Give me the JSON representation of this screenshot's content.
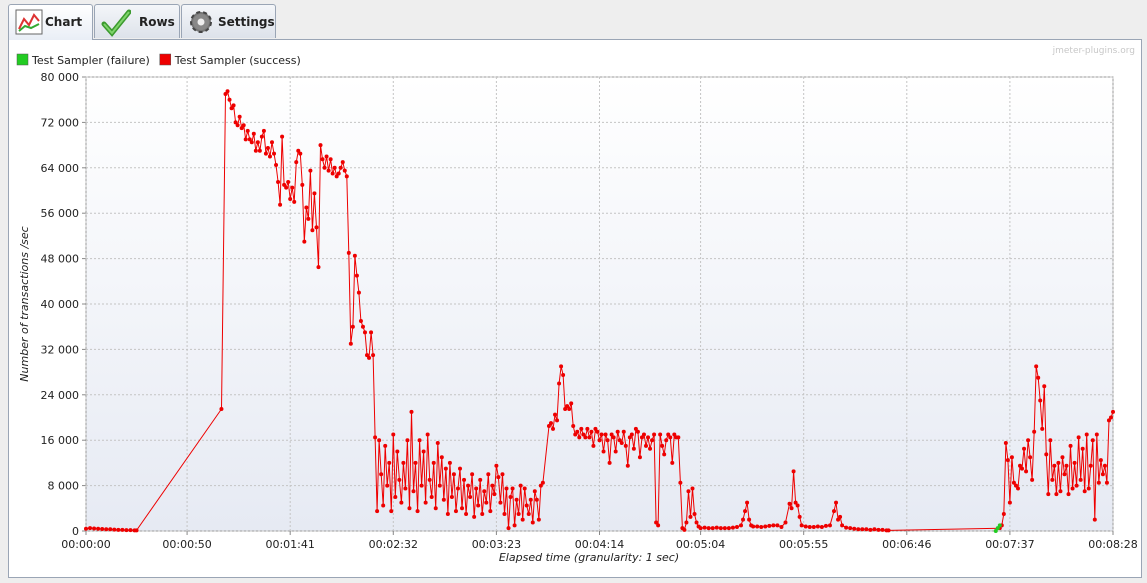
{
  "tabs": [
    "Chart",
    "Rows",
    "Settings"
  ],
  "watermark": "jmeter-plugins.org",
  "chart_data": {
    "type": "line",
    "x_label": "Elapsed time (granularity: 1 sec)",
    "y_label": "Number of transactions /sec",
    "xlim": [
      0,
      508
    ],
    "ylim": [
      0,
      80000
    ],
    "xticks": [
      {
        "value": 0,
        "label": "00:00:00"
      },
      {
        "value": 50,
        "label": "00:00:50"
      },
      {
        "value": 101,
        "label": "00:01:41"
      },
      {
        "value": 152,
        "label": "00:02:32"
      },
      {
        "value": 203,
        "label": "00:03:23"
      },
      {
        "value": 254,
        "label": "00:04:14"
      },
      {
        "value": 304,
        "label": "00:05:04"
      },
      {
        "value": 355,
        "label": "00:05:55"
      },
      {
        "value": 406,
        "label": "00:06:46"
      },
      {
        "value": 457,
        "label": "00:07:37"
      },
      {
        "value": 508,
        "label": "00:08:28"
      }
    ],
    "yticks": [
      0,
      {
        "value": 8000,
        "label": "8 000"
      },
      {
        "value": 16000,
        "label": "16 000"
      },
      {
        "value": 24000,
        "label": "24 000"
      },
      {
        "value": 32000,
        "label": "32 000"
      },
      {
        "value": 40000,
        "label": "40 000"
      },
      {
        "value": 48000,
        "label": "48 000"
      },
      {
        "value": 56000,
        "label": "56 000"
      },
      {
        "value": 64000,
        "label": "64 000"
      },
      {
        "value": 72000,
        "label": "72 000"
      },
      {
        "value": 80000,
        "label": "80 000"
      }
    ],
    "grid": true,
    "legend": "top-left",
    "series": [
      {
        "name": "Test Sampler (failure)",
        "color": "#22cc22",
        "x": [
          450,
          451,
          452
        ],
        "values": [
          0,
          500,
          1000
        ]
      },
      {
        "name": "Test Sampler (success)",
        "color": "#ee0000",
        "x": [
          0,
          2,
          4,
          6,
          8,
          10,
          12,
          14,
          16,
          18,
          20,
          22,
          24,
          25,
          67,
          69,
          70,
          71,
          72,
          73,
          74,
          75,
          76,
          77,
          78,
          79,
          80,
          81,
          82,
          83,
          84,
          85,
          86,
          87,
          88,
          89,
          90,
          91,
          92,
          93,
          94,
          95,
          96,
          97,
          98,
          99,
          100,
          101,
          102,
          103,
          104,
          105,
          106,
          107,
          108,
          109,
          110,
          111,
          112,
          113,
          114,
          115,
          116,
          117,
          118,
          119,
          120,
          121,
          122,
          123,
          124,
          125,
          126,
          127,
          128,
          129,
          130,
          131,
          132,
          133,
          134,
          135,
          136,
          137,
          138,
          139,
          140,
          141,
          142,
          143,
          144,
          145,
          146,
          147,
          148,
          149,
          150,
          151,
          152,
          153,
          154,
          155,
          156,
          157,
          158,
          159,
          160,
          161,
          162,
          163,
          164,
          165,
          166,
          167,
          168,
          169,
          170,
          171,
          172,
          173,
          174,
          175,
          176,
          177,
          178,
          179,
          180,
          181,
          182,
          183,
          184,
          185,
          186,
          187,
          188,
          189,
          190,
          191,
          192,
          193,
          194,
          195,
          196,
          197,
          198,
          199,
          200,
          201,
          202,
          203,
          204,
          205,
          206,
          207,
          208,
          209,
          210,
          211,
          212,
          213,
          214,
          215,
          216,
          217,
          218,
          219,
          220,
          221,
          222,
          223,
          224,
          225,
          226,
          229,
          230,
          231,
          232,
          233,
          234,
          235,
          236,
          237,
          238,
          239,
          240,
          241,
          242,
          243,
          244,
          245,
          246,
          247,
          248,
          249,
          250,
          251,
          252,
          253,
          254,
          255,
          256,
          257,
          258,
          259,
          260,
          261,
          262,
          263,
          264,
          265,
          266,
          267,
          268,
          269,
          270,
          271,
          272,
          273,
          274,
          275,
          276,
          277,
          278,
          279,
          280,
          281,
          282,
          283,
          284,
          285,
          286,
          287,
          288,
          289,
          290,
          291,
          292,
          293,
          294,
          295,
          296,
          297,
          298,
          299,
          300,
          301,
          302,
          303,
          304,
          306,
          308,
          310,
          312,
          314,
          316,
          318,
          320,
          322,
          324,
          325,
          326,
          327,
          328,
          329,
          330,
          332,
          334,
          336,
          338,
          340,
          342,
          344,
          346,
          348,
          349,
          350,
          351,
          352,
          353,
          354,
          356,
          358,
          360,
          362,
          364,
          366,
          368,
          370,
          371,
          372,
          373,
          374,
          376,
          378,
          380,
          382,
          384,
          386,
          388,
          390,
          392,
          394,
          396,
          397,
          452,
          453,
          454,
          455,
          456,
          457,
          458,
          459,
          460,
          461,
          462,
          463,
          464,
          465,
          466,
          467,
          468,
          469,
          470,
          471,
          472,
          473,
          474,
          475,
          476,
          477,
          478,
          479,
          480,
          481,
          482,
          483,
          484,
          485,
          486,
          487,
          488,
          489,
          490,
          491,
          492,
          493,
          494,
          495,
          496,
          497,
          498,
          499,
          500,
          501,
          502,
          503,
          504,
          505,
          506,
          507,
          508
        ],
        "values": [
          400,
          500,
          450,
          400,
          350,
          300,
          300,
          250,
          200,
          200,
          150,
          150,
          100,
          100,
          21500,
          77000,
          77500,
          76000,
          74500,
          75000,
          72000,
          71500,
          73000,
          71000,
          71500,
          69000,
          70500,
          69000,
          68500,
          70000,
          67000,
          68500,
          67000,
          69500,
          70500,
          66500,
          67500,
          66000,
          68500,
          66500,
          64500,
          61500,
          57500,
          69500,
          61000,
          60500,
          61500,
          58500,
          60500,
          58000,
          65000,
          67000,
          66500,
          61000,
          51000,
          57000,
          55000,
          63500,
          53000,
          59500,
          53500,
          46500,
          68000,
          65500,
          64000,
          66000,
          63500,
          65500,
          63000,
          64000,
          62500,
          63000,
          64000,
          65000,
          63500,
          62500,
          49000,
          33000,
          36000,
          48500,
          45000,
          42000,
          37000,
          36000,
          35000,
          31000,
          30500,
          35000,
          31000,
          16500,
          3500,
          16000,
          10000,
          4500,
          15000,
          8000,
          12000,
          3500,
          17000,
          6000,
          14000,
          9000,
          5000,
          12000,
          7500,
          16000,
          4000,
          21000,
          7000,
          12000,
          3500,
          16000,
          8000,
          14000,
          5000,
          17000,
          9000,
          6000,
          12000,
          4000,
          15500,
          8000,
          13000,
          5500,
          11000,
          3000,
          12000,
          6000,
          10000,
          3500,
          7500,
          11000,
          4000,
          9000,
          3000,
          8000,
          6000,
          10000,
          2500,
          7500,
          4500,
          9000,
          3000,
          7000,
          5000,
          10000,
          3500,
          8000,
          6500,
          11500,
          9500,
          5000,
          10000,
          3000,
          7500,
          500,
          6000,
          7500,
          1000,
          5500,
          3000,
          8000,
          2000,
          7500,
          4500,
          3000,
          5500,
          1500,
          7000,
          5500,
          2000,
          8000,
          8500,
          18500,
          19000,
          18000,
          20500,
          19500,
          26000,
          29000,
          27500,
          21500,
          22000,
          21500,
          22500,
          18500,
          17000,
          17500,
          16500,
          18000,
          17000,
          16500,
          18000,
          16500,
          17500,
          15000,
          18000,
          17500,
          16000,
          17000,
          14000,
          17000,
          16000,
          12000,
          17000,
          16500,
          14000,
          17500,
          16000,
          15500,
          17500,
          15000,
          11500,
          16500,
          17000,
          14500,
          18000,
          17500,
          13000,
          16500,
          17000,
          15000,
          16500,
          14500,
          16000,
          17000,
          1500,
          1000,
          17000,
          15000,
          13500,
          16000,
          17000,
          16500,
          12000,
          17000,
          16500,
          16500,
          8500,
          500,
          200,
          1500,
          7000,
          2500,
          7500,
          3000,
          1500,
          800,
          500,
          600,
          500,
          500,
          600,
          500,
          500,
          500,
          600,
          700,
          1000,
          2000,
          3500,
          5000,
          2000,
          1000,
          800,
          800,
          700,
          800,
          900,
          1000,
          1000,
          700,
          1500,
          4800,
          4000,
          10500,
          5000,
          4500,
          2500,
          1000,
          800,
          700,
          700,
          800,
          700,
          900,
          1000,
          3500,
          5000,
          2000,
          2500,
          1000,
          600,
          500,
          400,
          300,
          300,
          300,
          200,
          300,
          200,
          200,
          100,
          100,
          500,
          1000,
          3000,
          15500,
          12500,
          5000,
          13000,
          8500,
          8000,
          7500,
          11500,
          11000,
          14500,
          10500,
          16000,
          13000,
          9000,
          17500,
          29000,
          27000,
          23000,
          18000,
          25500,
          13500,
          6500,
          16000,
          9000,
          11500,
          6500,
          12000,
          7000,
          13000,
          10000,
          11500,
          6500,
          15000,
          7500,
          12000,
          8000,
          16500,
          9000,
          14500,
          7000,
          17000,
          7500,
          11500,
          16000,
          2000,
          17000,
          8500,
          12500,
          10000,
          11500,
          8500,
          19500,
          20000,
          21000
        ]
      }
    ]
  }
}
